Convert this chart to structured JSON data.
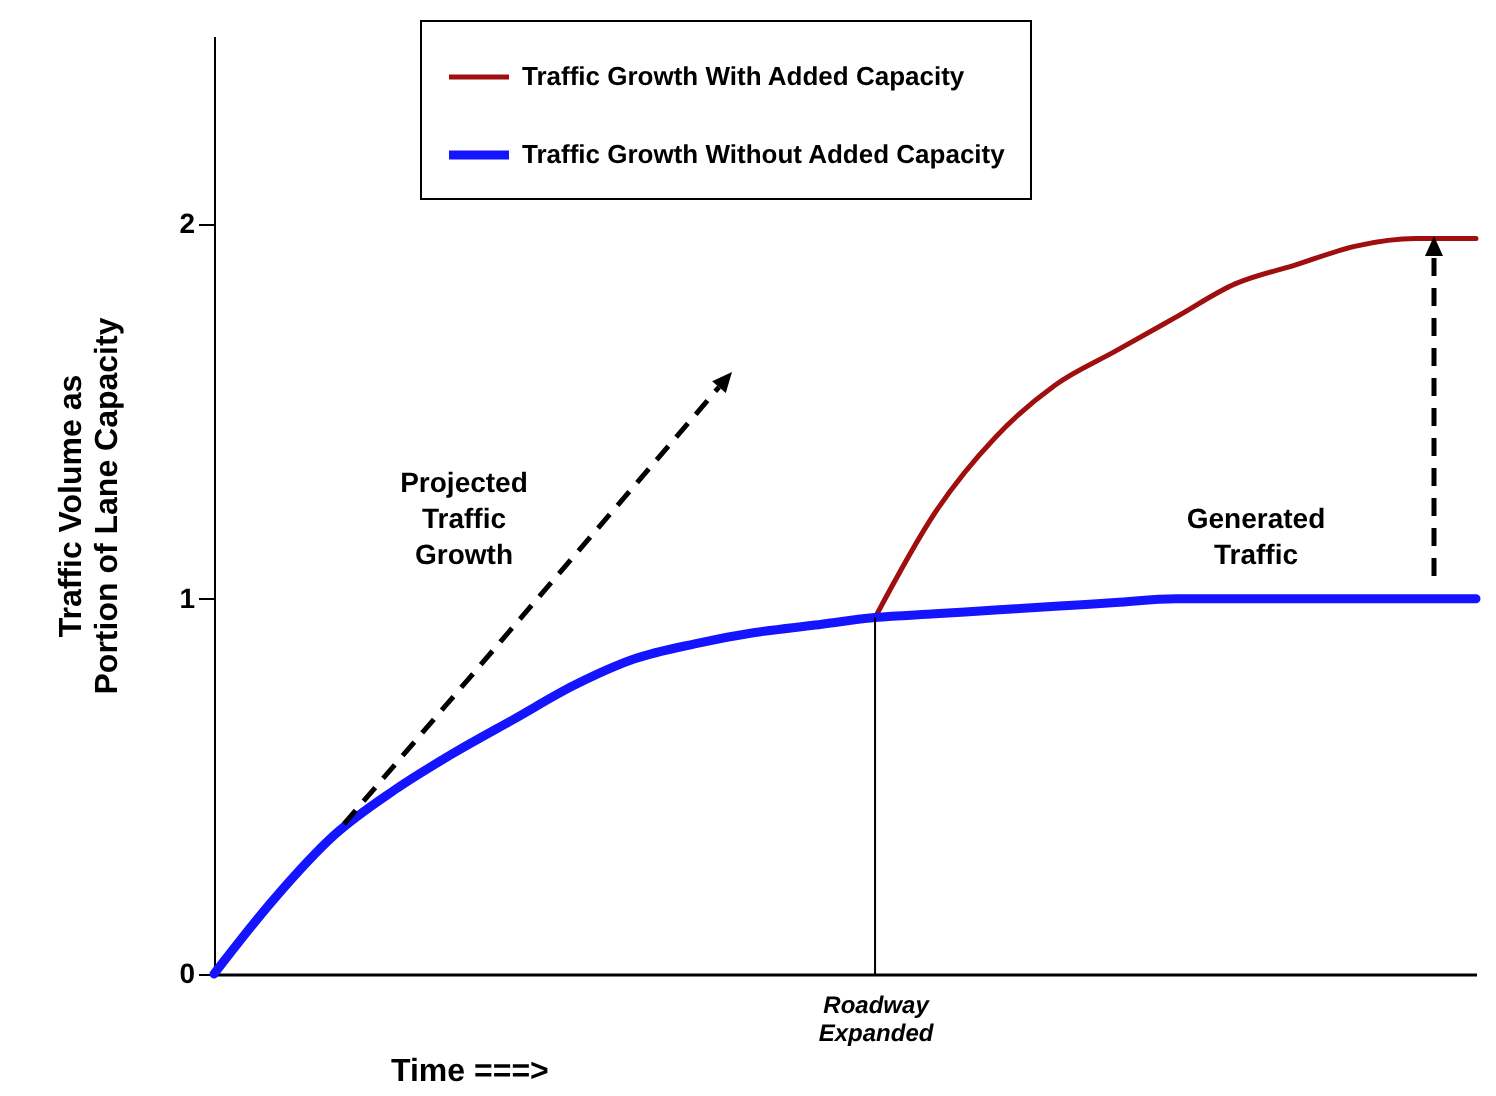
{
  "chart_data": {
    "type": "line",
    "categories": [
      null,
      null,
      null,
      null,
      null,
      null,
      null,
      null,
      null,
      null,
      null,
      "Roadway Expanded",
      null,
      null,
      null,
      null,
      null,
      null,
      null,
      null,
      null,
      null
    ],
    "series": [
      {
        "name": "Traffic Growth With Added Capacity",
        "color": "#a00f0f",
        "values": [
          null,
          null,
          null,
          null,
          null,
          null,
          null,
          null,
          null,
          null,
          null,
          0.95,
          1.23,
          1.43,
          1.57,
          1.66,
          1.75,
          1.84,
          1.89,
          1.94,
          1.96,
          1.96
        ]
      },
      {
        "name": "Traffic Growth Without Added Capacity",
        "color": "#1414ff",
        "values": [
          0,
          0.2,
          0.37,
          0.49,
          0.59,
          0.68,
          0.77,
          0.84,
          0.88,
          0.91,
          0.93,
          0.95,
          0.96,
          0.97,
          0.98,
          0.99,
          1.0,
          1.0,
          1.0,
          1.0,
          1.0,
          1.0
        ]
      }
    ],
    "ylim": [
      0,
      2.5
    ],
    "yticks": [
      0,
      1,
      2
    ],
    "xlabel": "Time  ===>",
    "ylabel": "Traffic Volume as Portion of Lane Capacity",
    "ref_lines": [
      {
        "axis": "x",
        "value": "Roadway Expanded"
      }
    ],
    "annotations": [
      "Projected Traffic Growth",
      "Generated Traffic"
    ],
    "legend": "top"
  }
}
